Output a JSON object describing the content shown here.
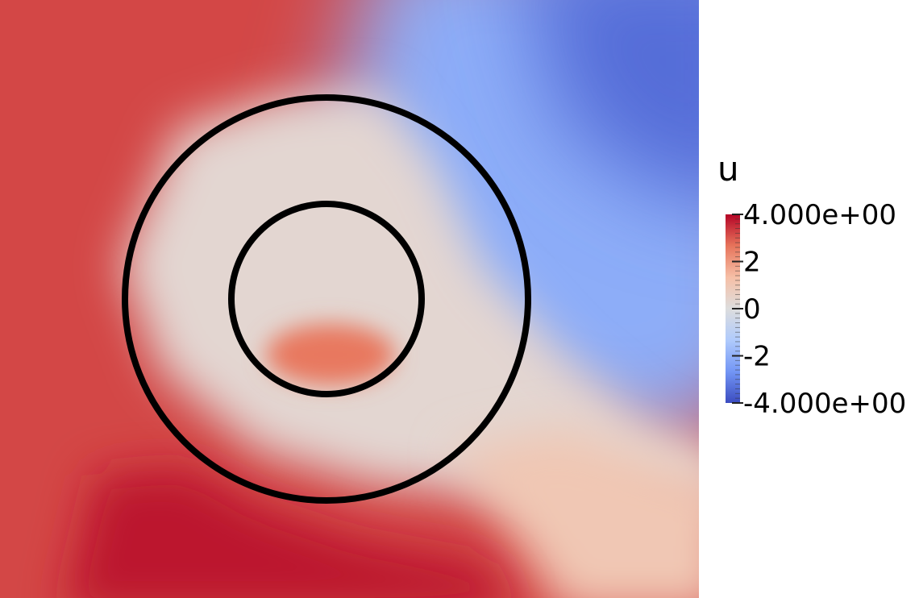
{
  "chart_data": {
    "type": "heatmap",
    "title": "",
    "colorbar": {
      "title": "u",
      "min": -4,
      "max": 4,
      "ticks": [
        {
          "value": 4,
          "label": "4.000e+00"
        },
        {
          "value": 2,
          "label": "2"
        },
        {
          "value": 0,
          "label": "0"
        },
        {
          "value": -2,
          "label": "-2"
        },
        {
          "value": -4,
          "label": "-4.000e+00"
        }
      ],
      "colormap": [
        "#3b4cc0",
        "#7396f5",
        "#b0cbfc",
        "#dddddd",
        "#f6bfa6",
        "#e7745b",
        "#b40426"
      ]
    },
    "field": {
      "top_left": 3.2,
      "top_right": -3.4,
      "bottom_left": 3.4,
      "bottom_right": 1.0,
      "center_inner": 0.3,
      "inner_lower_hotspot": 2.6,
      "lower_left_hotspot": 3.8
    },
    "circles": [
      {
        "name": "outer circle"
      },
      {
        "name": "inner circle"
      }
    ]
  }
}
